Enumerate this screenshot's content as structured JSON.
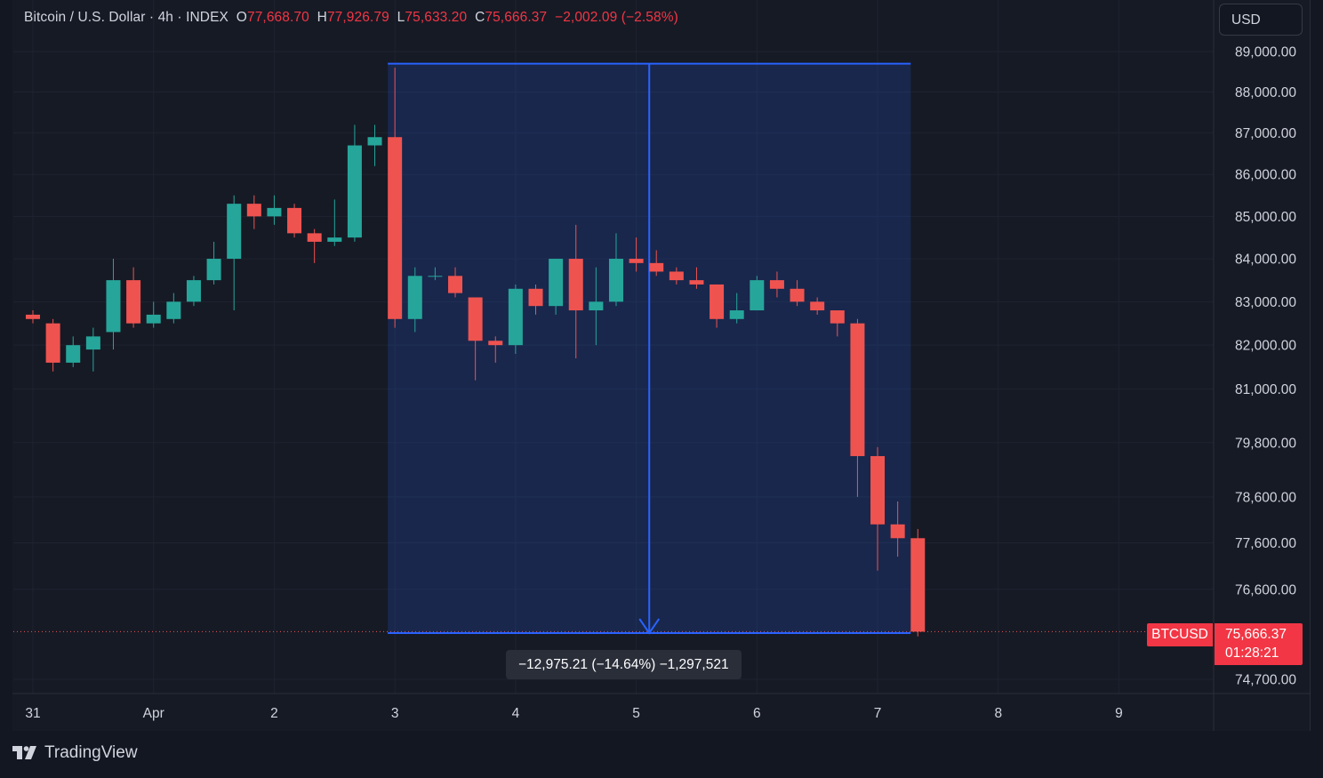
{
  "legend": {
    "symbol": "Bitcoin / U.S. Dollar",
    "interval": "4h",
    "source": "INDEX",
    "open_label": "O",
    "open": "77,668.70",
    "high_label": "H",
    "high": "77,926.79",
    "low_label": "L",
    "low": "75,633.20",
    "close_label": "C",
    "close": "75,666.37",
    "change": "−2,002.09 (−2.58%)"
  },
  "currency": "USD",
  "measure": {
    "label": "−12,975.21 (−14.64%) −1,297,521"
  },
  "last_price": {
    "symbol": "BTCUSD",
    "price": "75,666.37",
    "countdown": "01:28:21"
  },
  "brand": {
    "name": "TradingView"
  },
  "colors": {
    "up": "#26a69a",
    "down": "#ef5350",
    "measure": "#2962ff",
    "background": "#161a25"
  },
  "chart_data": {
    "type": "candlestick",
    "y_tick_labels": [
      "89,000.00",
      "88,000.00",
      "87,000.00",
      "86,000.00",
      "85,000.00",
      "84,000.00",
      "83,000.00",
      "82,000.00",
      "81,000.00",
      "79,800.00",
      "78,600.00",
      "77,600.00",
      "76,600.00",
      "74,700.00"
    ],
    "y_scale": "log",
    "ylim": [
      74400,
      89700
    ],
    "x_tick_labels": [
      "31",
      "Apr",
      "2",
      "3",
      "4",
      "5",
      "6",
      "7",
      "8",
      "9"
    ],
    "x_ticks": [
      0,
      6,
      12,
      18,
      24,
      30,
      36,
      42,
      48,
      54
    ],
    "bar_interval": "4h",
    "candles": [
      {
        "o": 82700,
        "h": 82800,
        "l": 82500,
        "c": 82600
      },
      {
        "o": 82500,
        "h": 82600,
        "l": 81400,
        "c": 81600
      },
      {
        "o": 81600,
        "h": 82200,
        "l": 81500,
        "c": 82000
      },
      {
        "o": 81900,
        "h": 82400,
        "l": 81400,
        "c": 82200
      },
      {
        "o": 82300,
        "h": 84000,
        "l": 81900,
        "c": 83500
      },
      {
        "o": 83500,
        "h": 83800,
        "l": 82400,
        "c": 82500
      },
      {
        "o": 82500,
        "h": 83000,
        "l": 82400,
        "c": 82700
      },
      {
        "o": 82600,
        "h": 83200,
        "l": 82500,
        "c": 83000
      },
      {
        "o": 83000,
        "h": 83600,
        "l": 82900,
        "c": 83500
      },
      {
        "o": 83500,
        "h": 84400,
        "l": 83400,
        "c": 84000
      },
      {
        "o": 84000,
        "h": 85500,
        "l": 82800,
        "c": 85300
      },
      {
        "o": 85300,
        "h": 85500,
        "l": 84700,
        "c": 85000
      },
      {
        "o": 85000,
        "h": 85500,
        "l": 84800,
        "c": 85200
      },
      {
        "o": 85200,
        "h": 85300,
        "l": 84500,
        "c": 84600
      },
      {
        "o": 84600,
        "h": 84700,
        "l": 83900,
        "c": 84400
      },
      {
        "o": 84400,
        "h": 85400,
        "l": 84300,
        "c": 84500
      },
      {
        "o": 84500,
        "h": 87200,
        "l": 84400,
        "c": 86700
      },
      {
        "o": 86700,
        "h": 87200,
        "l": 86200,
        "c": 86900
      },
      {
        "o": 86900,
        "h": 88600,
        "l": 82400,
        "c": 82600
      },
      {
        "o": 82600,
        "h": 83800,
        "l": 82300,
        "c": 83600
      },
      {
        "o": 83600,
        "h": 83800,
        "l": 83500,
        "c": 83600
      },
      {
        "o": 83600,
        "h": 83800,
        "l": 83100,
        "c": 83200
      },
      {
        "o": 83100,
        "h": 83100,
        "l": 81200,
        "c": 82100
      },
      {
        "o": 82100,
        "h": 82200,
        "l": 81600,
        "c": 82000
      },
      {
        "o": 82000,
        "h": 83400,
        "l": 81800,
        "c": 83300
      },
      {
        "o": 83300,
        "h": 83400,
        "l": 82700,
        "c": 82900
      },
      {
        "o": 82900,
        "h": 84000,
        "l": 82700,
        "c": 84000
      },
      {
        "o": 84000,
        "h": 84800,
        "l": 81700,
        "c": 82800
      },
      {
        "o": 82800,
        "h": 83800,
        "l": 82000,
        "c": 83000
      },
      {
        "o": 83000,
        "h": 84600,
        "l": 82900,
        "c": 84000
      },
      {
        "o": 84000,
        "h": 84500,
        "l": 83700,
        "c": 83900
      },
      {
        "o": 83900,
        "h": 84200,
        "l": 83600,
        "c": 83700
      },
      {
        "o": 83700,
        "h": 83800,
        "l": 83400,
        "c": 83500
      },
      {
        "o": 83500,
        "h": 83800,
        "l": 83300,
        "c": 83400
      },
      {
        "o": 83400,
        "h": 83400,
        "l": 82400,
        "c": 82600
      },
      {
        "o": 82600,
        "h": 83200,
        "l": 82500,
        "c": 82800
      },
      {
        "o": 82800,
        "h": 83600,
        "l": 82800,
        "c": 83500
      },
      {
        "o": 83500,
        "h": 83700,
        "l": 83100,
        "c": 83300
      },
      {
        "o": 83300,
        "h": 83500,
        "l": 82900,
        "c": 83000
      },
      {
        "o": 83000,
        "h": 83100,
        "l": 82700,
        "c": 82800
      },
      {
        "o": 82800,
        "h": 82800,
        "l": 82200,
        "c": 82500
      },
      {
        "o": 82500,
        "h": 82600,
        "l": 78600,
        "c": 79500
      },
      {
        "o": 79500,
        "h": 79700,
        "l": 77000,
        "c": 78000
      },
      {
        "o": 78000,
        "h": 78500,
        "l": 77300,
        "c": 77700
      },
      {
        "o": 77700,
        "h": 77900,
        "l": 75600,
        "c": 75700
      }
    ],
    "measure": {
      "from_index": 18,
      "to_index": 44,
      "top": 88700,
      "bottom": 75670
    }
  }
}
